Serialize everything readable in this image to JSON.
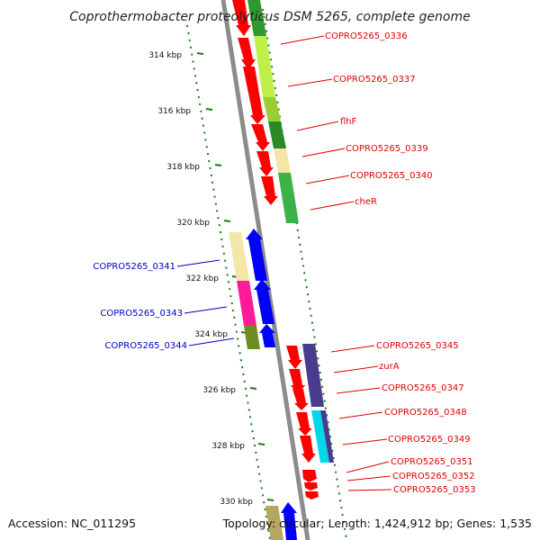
{
  "title": "Coprothermobacter proteolyticus DSM 5265, complete genome",
  "accession": "Accession: NC_011295",
  "summary": "Topology: circular; Length: 1,424,912 bp; Genes: 1,535",
  "colors": {
    "forward_label": "#e00000",
    "reverse_label": "#0000c0",
    "backbone": "#8c8c8c",
    "tick": "#1a7a1a",
    "cds": "#ff0000",
    "cds_reverse": "#0000ff"
  },
  "ruler": [
    "314 kbp",
    "316 kbp",
    "318 kbp",
    "320 kbp",
    "322 kbp",
    "324 kbp",
    "326 kbp",
    "328 kbp",
    "330 kbp"
  ],
  "forward_labels": [
    "COPRO5265_0336",
    "COPRO5265_0337",
    "flhF",
    "COPRO5265_0339",
    "COPRO5265_0340",
    "cheR",
    "COPRO5265_0345",
    "zurA",
    "COPRO5265_0347",
    "COPRO5265_0348",
    "COPRO5265_0349",
    "COPRO5265_0351",
    "COPRO5265_0352",
    "COPRO5265_0353"
  ],
  "reverse_labels": [
    "COPRO5265_0341",
    "COPRO5265_0343",
    "COPRO5265_0344"
  ]
}
